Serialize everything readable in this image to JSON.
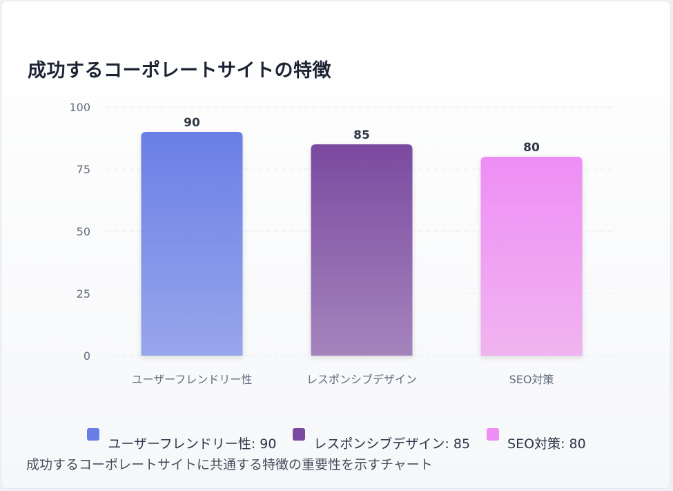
{
  "title": "成功するコーポレートサイトの特徴",
  "caption": "成功するコーポレートサイトに共通する特徴の重要性を示すチャート",
  "legend": [
    {
      "label": "ユーザーフレンドリー性: 90",
      "color": "#6a7fe6"
    },
    {
      "label": "レスポンシブデザイン: 85",
      "color": "#7a4aa0"
    },
    {
      "label": "SEO対策: 80",
      "color": "#ee8ef5"
    }
  ],
  "chart_data": {
    "type": "bar",
    "categories": [
      "ユーザーフレンドリー性",
      "レスポンシブデザイン",
      "SEO対策"
    ],
    "values": [
      90,
      85,
      80
    ],
    "value_labels": [
      "90",
      "85",
      "80"
    ],
    "y_ticks": [
      0,
      25,
      50,
      75,
      100
    ],
    "y_tick_labels": [
      "0",
      "25",
      "50",
      "75",
      "100"
    ],
    "ylim": [
      0,
      100
    ],
    "grid": true,
    "legend_position": "bottom",
    "bar_colors": [
      {
        "top": "#6a7fe6",
        "bottom": "#98a6eb"
      },
      {
        "top": "#7a4aa0",
        "bottom": "#a584bd"
      },
      {
        "top": "#ee8ef5",
        "bottom": "#f1b4f0"
      }
    ]
  }
}
